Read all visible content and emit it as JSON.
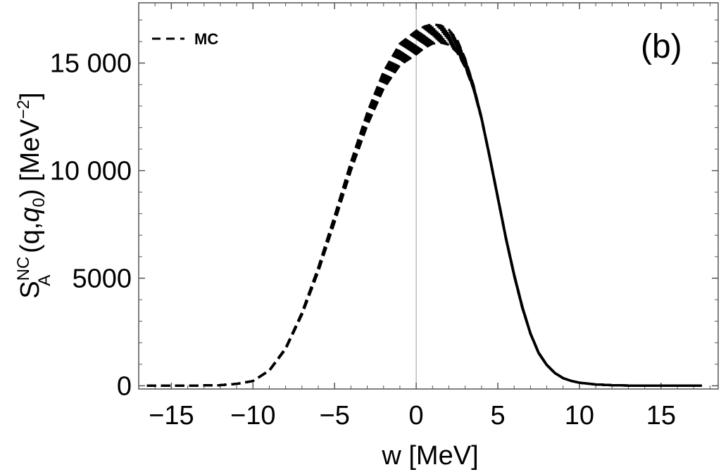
{
  "chart_data": {
    "type": "line",
    "title": "",
    "panel_label": "(b)",
    "xlabel": "w [MeV]",
    "ylabel": {
      "base": "S",
      "superscript": "NC",
      "subscript": "A",
      "args_open": " (q,",
      "args_var": "q",
      "args_var_sub": "0",
      "args_close": ")",
      "units_open": " [MeV",
      "units_sup": "−2",
      "units_close": "]"
    },
    "xlim": [
      -17,
      18.5
    ],
    "ylim": [
      -150,
      17800
    ],
    "xticks": [
      -15,
      -10,
      -5,
      0,
      5,
      10,
      15
    ],
    "xtick_labels": [
      "−15",
      "−10",
      "−5",
      "0",
      "5",
      "10",
      "15"
    ],
    "yticks": [
      0,
      5000,
      10000,
      15000
    ],
    "ytick_labels": [
      "0",
      "5000",
      "10 000",
      "15 000"
    ],
    "legend": {
      "position": "top-left",
      "entries": [
        {
          "label": "MC",
          "style": "dashed"
        }
      ]
    },
    "series": [
      {
        "name": "MC lower",
        "style": "dashed",
        "x": [
          -16.5,
          -14,
          -12,
          -11,
          -10,
          -9,
          -8,
          -7,
          -6,
          -5,
          -4,
          -3,
          -2,
          -1,
          0,
          0.5,
          1,
          1.5,
          2,
          2.5,
          3,
          3.5,
          4,
          4.5,
          5,
          5.5,
          6,
          6.5,
          7,
          7.5,
          8,
          8.5,
          9,
          9.5,
          10,
          11,
          12,
          13,
          14,
          15,
          16,
          17.5
        ],
        "y": [
          0,
          5,
          30,
          90,
          220,
          700,
          1700,
          3300,
          5300,
          7600,
          10000,
          12100,
          13800,
          14900,
          15400,
          15700,
          15900,
          15950,
          15850,
          15500,
          14800,
          13800,
          12400,
          10600,
          8700,
          6800,
          5100,
          3600,
          2400,
          1500,
          950,
          580,
          350,
          220,
          140,
          60,
          25,
          10,
          5,
          2,
          1,
          0
        ]
      },
      {
        "name": "MC upper",
        "style": "dashed",
        "x": [
          -16.5,
          -14,
          -12,
          -11,
          -10,
          -9,
          -8,
          -7,
          -6,
          -5,
          -4,
          -3,
          -2,
          -1,
          0,
          0.5,
          1,
          1.5,
          2,
          2.5,
          3,
          3.5,
          4,
          4.5,
          5,
          5.5,
          6,
          6.5,
          7,
          7.5,
          8,
          8.5,
          9,
          9.5,
          10,
          11,
          12,
          13,
          14,
          15,
          16,
          17.5
        ],
        "y": [
          0,
          5,
          30,
          90,
          220,
          720,
          1750,
          3400,
          5500,
          7900,
          10400,
          12700,
          14600,
          15900,
          16500,
          16700,
          16800,
          16750,
          16550,
          16100,
          15200,
          14000,
          12500,
          10700,
          8800,
          6900,
          5200,
          3700,
          2450,
          1550,
          980,
          600,
          360,
          230,
          145,
          62,
          26,
          10,
          5,
          2,
          1,
          0
        ]
      }
    ]
  }
}
